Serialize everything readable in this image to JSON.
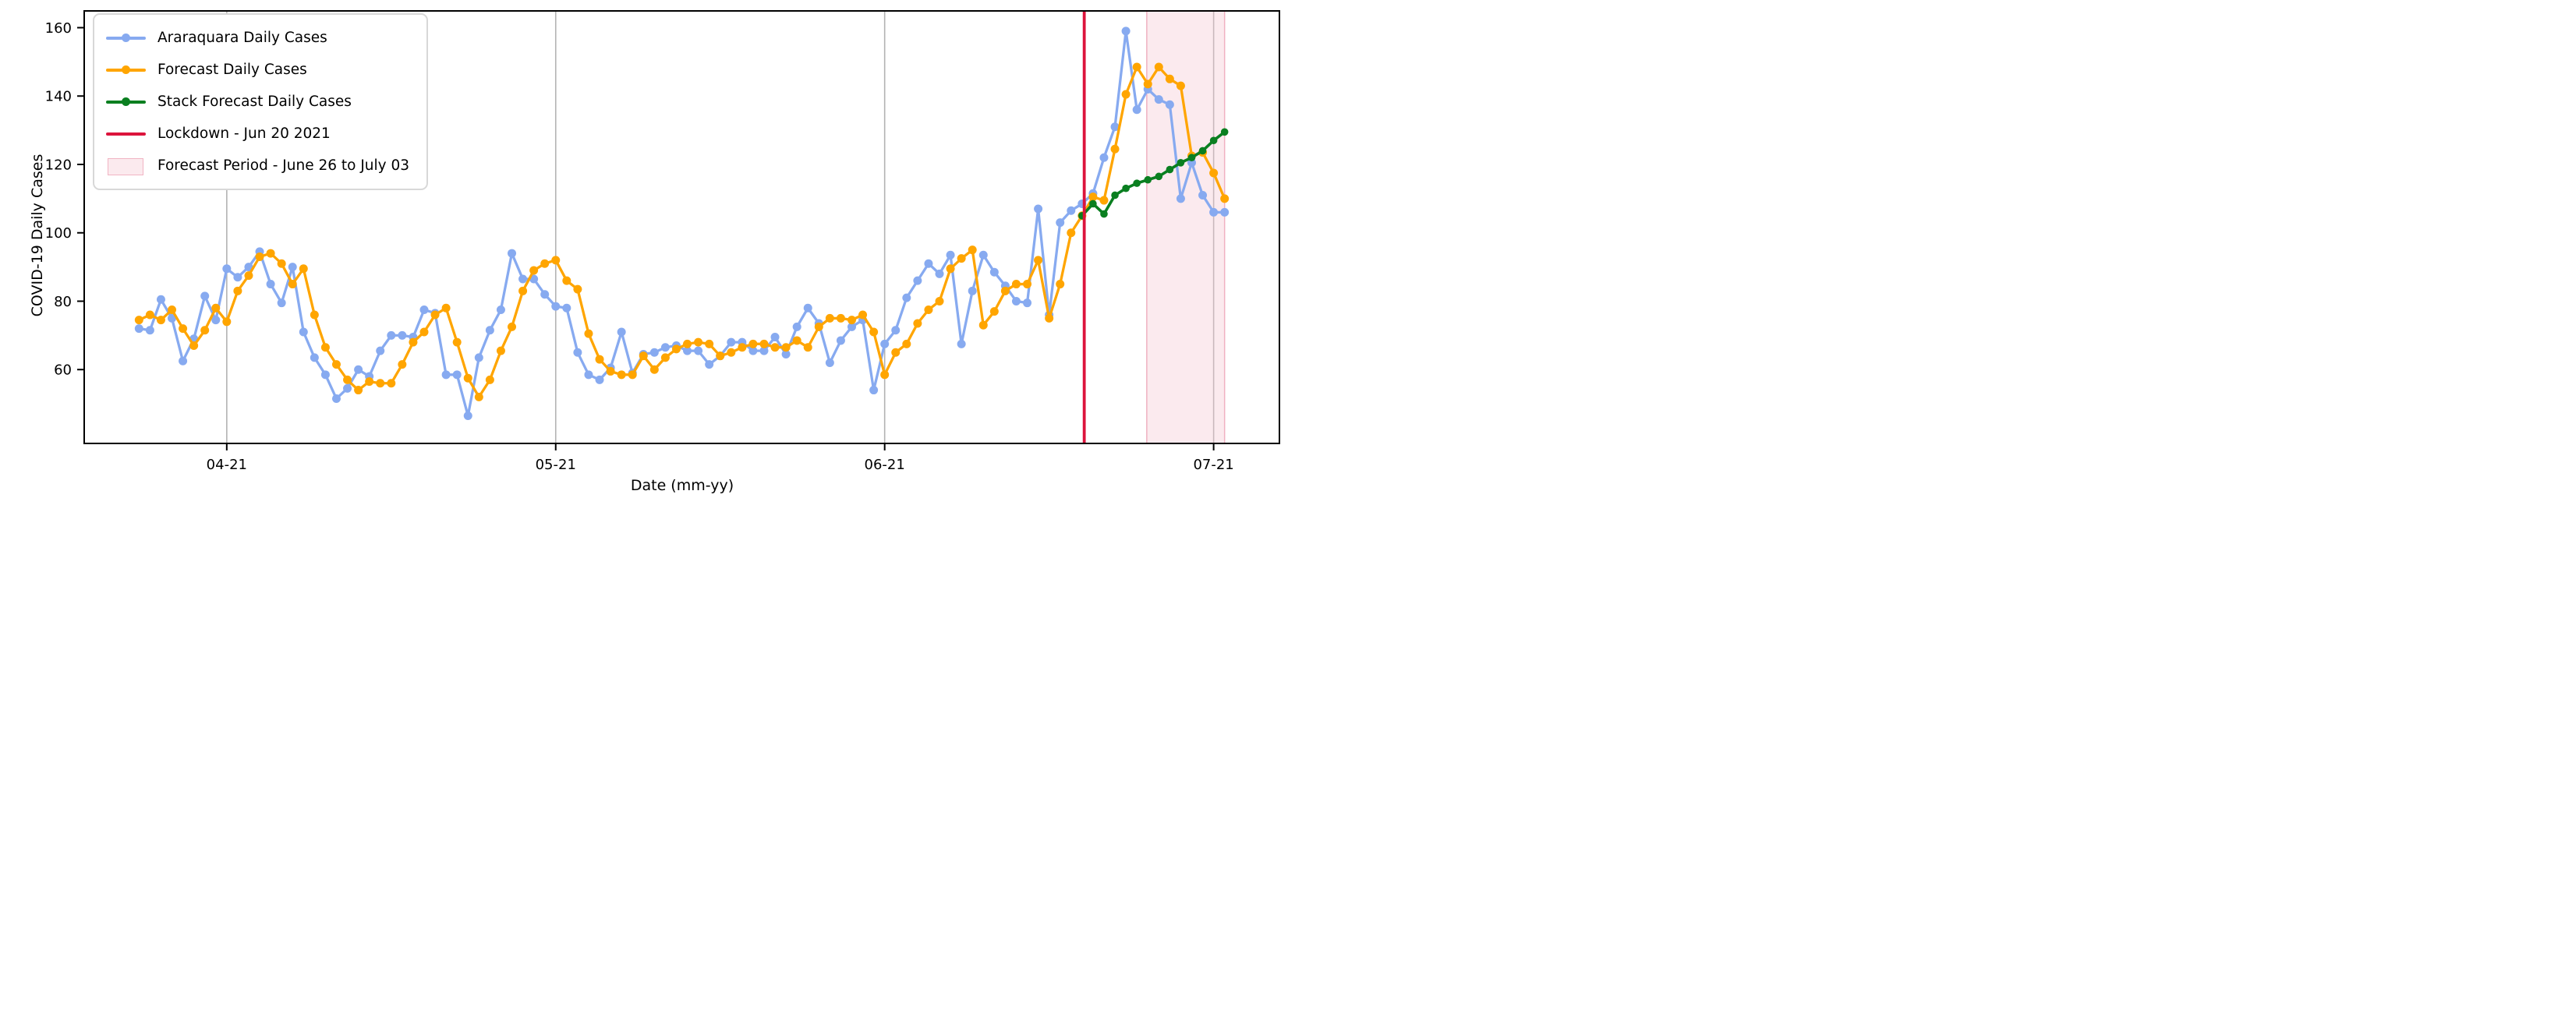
{
  "figure": {
    "background": "#ffffff"
  },
  "axes": {
    "ylabel": "COVID-19 Daily Cases",
    "xlabel": "Date (mm-yy)",
    "yticks": [
      60,
      80,
      100,
      120,
      140,
      160
    ],
    "xticks": [
      {
        "pos": 8,
        "label": "04-21"
      },
      {
        "pos": 38,
        "label": "05-21"
      },
      {
        "pos": 68,
        "label": "06-21"
      },
      {
        "pos": 98,
        "label": "07-21"
      }
    ],
    "xlim": [
      -5,
      104
    ],
    "ylim": [
      38.4,
      164.9
    ],
    "gridline_color": "#b3b3b3",
    "spine_color": "#000000"
  },
  "legend": {
    "items": [
      {
        "id": "araraquara",
        "label": "Araraquara Daily Cases",
        "type": "line-marker",
        "color": "#87aaf0"
      },
      {
        "id": "forecast",
        "label": "Forecast Daily Cases",
        "type": "line-marker",
        "color": "#ffa500"
      },
      {
        "id": "stack",
        "label": "Stack Forecast Daily Cases",
        "type": "line-marker",
        "color": "#0a7f20"
      },
      {
        "id": "lockdown",
        "label": "Lockdown - Jun 20 2021",
        "type": "line",
        "color": "#dc143c"
      },
      {
        "id": "band",
        "label": "Forecast Period - June 26 to July 03",
        "type": "patch",
        "color": "#f4c2cf"
      }
    ]
  },
  "chart_data": {
    "type": "line",
    "title": "",
    "xlabel": "Date (mm-yy)",
    "ylabel": "COVID-19 Daily Cases",
    "x_unit": "daily points (index); month ticks labelled mm-yy",
    "grid": "vertical gridlines at month ticks only",
    "legend_position": "upper left",
    "series": [
      {
        "name": "Araraquara Daily Cases",
        "color": "#87aaf0",
        "marker": "circle",
        "start_index": 0,
        "values": [
          72,
          71.5,
          80.5,
          75,
          62.5,
          69,
          81.5,
          74.5,
          89.5,
          87,
          90,
          94.5,
          85,
          79.5,
          90,
          71,
          63.5,
          58.5,
          51.5,
          54.5,
          60,
          58,
          65.5,
          70,
          70,
          69.5,
          77.5,
          76.5,
          58.5,
          58.5,
          46.5,
          63.5,
          71.5,
          77.5,
          94,
          86.5,
          86.5,
          82,
          78.5,
          78,
          65,
          58.5,
          57,
          60.5,
          71,
          59,
          64.5,
          65,
          66.5,
          67,
          65.5,
          65.5,
          61.5,
          64,
          68,
          68,
          65.5,
          65.5,
          69.5,
          64.5,
          72.5,
          78,
          73.5,
          62,
          68.5,
          72.5,
          74.5,
          54,
          67.5,
          71.5,
          81,
          86,
          91,
          88,
          93.5,
          67.5,
          83,
          93.5,
          88.5,
          84.5,
          80,
          79.5,
          107,
          76,
          103,
          106.5,
          108.5,
          111.5,
          122,
          131,
          159,
          136,
          142,
          139,
          137.5,
          110,
          120.5,
          111,
          106,
          106
        ]
      },
      {
        "name": "Forecast Daily Cases",
        "color": "#ffa500",
        "marker": "circle",
        "start_index": 0,
        "values": [
          74.5,
          76,
          74.5,
          77.5,
          72,
          67,
          71.5,
          78,
          74,
          83,
          87.5,
          93,
          94,
          91,
          85,
          89.5,
          76,
          66.5,
          61.5,
          57,
          54,
          56.5,
          56,
          56,
          61.5,
          68,
          71,
          76,
          78,
          68,
          57.5,
          52,
          57,
          65.5,
          72.5,
          83,
          89,
          91,
          92,
          86,
          83.5,
          70.5,
          63,
          59.5,
          58.5,
          58.5,
          64,
          60,
          63.5,
          66,
          67.5,
          68,
          67.5,
          64,
          65,
          66.5,
          67.5,
          67.5,
          66.5,
          66.5,
          68.5,
          66.5,
          72.5,
          75,
          75,
          74.5,
          76,
          71,
          58.5,
          65,
          67.5,
          73.5,
          77.5,
          80,
          89.5,
          92.5,
          95,
          73,
          77,
          83,
          85,
          85,
          92,
          75,
          85,
          100,
          105,
          110.5,
          109.5,
          124.5,
          140.5,
          148.5,
          143.5,
          148.5,
          145,
          143,
          122.5,
          123.5,
          117.5,
          110
        ]
      },
      {
        "name": "Stack Forecast Daily Cases",
        "color": "#0a7f20",
        "marker": "circle",
        "start_index": 86,
        "values": [
          105,
          108.5,
          105.5,
          111,
          113,
          114.5,
          115.5,
          116.5,
          118.5,
          120.5,
          122,
          124,
          127,
          129.5
        ]
      }
    ],
    "lockdown_line": {
      "label": "Lockdown - Jun 20 2021",
      "x": 86.2,
      "color": "#dc143c"
    },
    "forecast_band": {
      "label": "Forecast Period - June 26 to July 03",
      "x_start": 91.9,
      "x_end": 99.0,
      "fill": "#f4c2cf",
      "fill_opacity": 0.35,
      "edge_color": "#eeaabb"
    }
  }
}
